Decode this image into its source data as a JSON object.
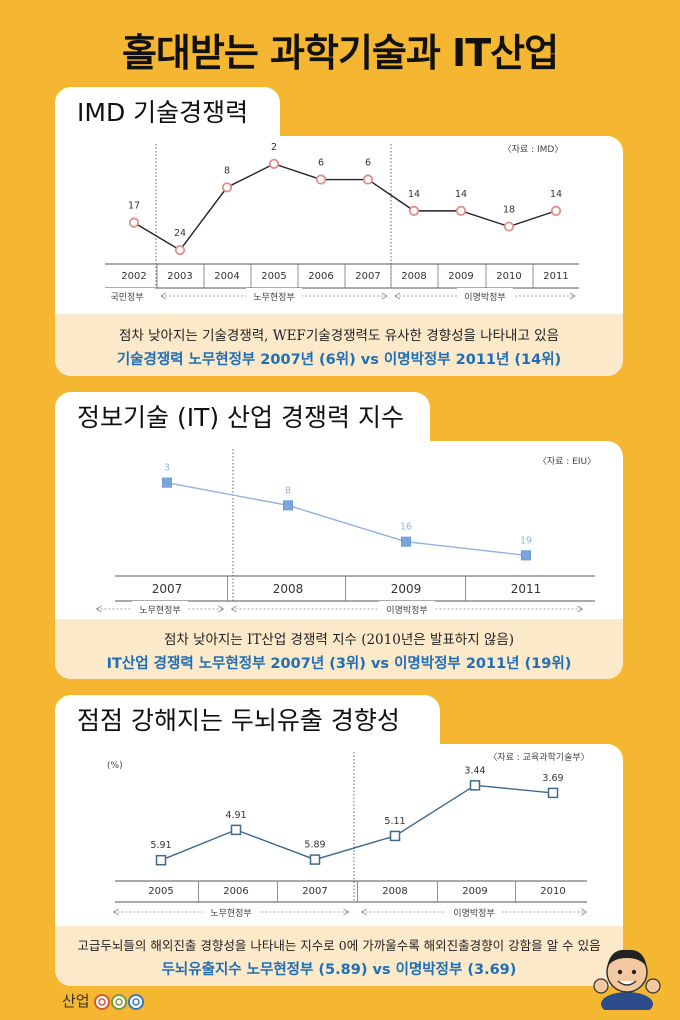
{
  "title": "홀대받는 과학기술과 IT산업",
  "footer_logo": "산업",
  "chart_data": [
    {
      "type": "line",
      "title": "IMD 기술경쟁력",
      "source": "〈자료 : IMD〉",
      "x": [
        "2002",
        "2003",
        "2004",
        "2005",
        "2006",
        "2007",
        "2008",
        "2009",
        "2010",
        "2011"
      ],
      "series": [
        {
          "values": [
            17,
            24,
            8,
            2,
            6,
            6,
            14,
            14,
            18,
            14
          ]
        }
      ],
      "ylim_inverted": [
        0,
        25
      ],
      "periods": [
        {
          "label": "국민정부",
          "start": 0,
          "end": 0
        },
        {
          "label": "노무현정부",
          "start": 1,
          "end": 5
        },
        {
          "label": "이명박정부",
          "start": 6,
          "end": 9
        }
      ],
      "note": "점차 낮아지는 기술경쟁력, WEF기술경쟁력도 유사한 경향성을 나타내고 있음",
      "highlight": "기술경쟁력 노무현정부 2007년 (6위) vs 이명박정부 2011년 (14위)",
      "marker_color": "#E48C8C",
      "line_color": "#222222"
    },
    {
      "type": "line",
      "title": "정보기술 (IT) 산업 경쟁력 지수",
      "source": "〈자료 : EIU〉",
      "x": [
        "2007",
        "2008",
        "2009",
        "2011"
      ],
      "series": [
        {
          "values": [
            3,
            8,
            16,
            19
          ]
        }
      ],
      "ylim_inverted": [
        0,
        22
      ],
      "periods": [
        {
          "label": "노무현정부",
          "start": 0,
          "end": 0
        },
        {
          "label": "이명박정부",
          "start": 1,
          "end": 3
        }
      ],
      "note": "점차 낮아지는 IT산업 경쟁력 지수 (2010년은 발표하지 않음)",
      "highlight": "IT산업 경쟁력 노무현정부 2007년 (3위) vs 이명박정부 2011년 (19위)",
      "marker_color": "#7AA6E0",
      "line_color": "#8FB3E3"
    },
    {
      "type": "line",
      "title": "점점 강해지는 두뇌유출 경향성",
      "source": "〈자료 : 교육과학기술부〉",
      "ylabel": "(%)",
      "x": [
        "2005",
        "2006",
        "2007",
        "2008",
        "2009",
        "2010"
      ],
      "series": [
        {
          "values": [
            5.91,
            4.91,
            5.89,
            5.11,
            3.44,
            3.69
          ]
        }
      ],
      "ylim_inverted": [
        3.0,
        6.3
      ],
      "periods": [
        {
          "label": "노무현정부",
          "start": 0,
          "end": 2
        },
        {
          "label": "이명박정부",
          "start": 3,
          "end": 5
        }
      ],
      "note": "고급두뇌들의 해외진출 경향성을 나타내는 지수로 0에 가까울수록 해외진출경향이 강함을 알 수 있음",
      "highlight": "두뇌유출지수 노무현정부 (5.89) vs 이명박정부 (3.69)",
      "marker_color": "#3E6A8E",
      "line_color": "#3E6A8E"
    }
  ]
}
